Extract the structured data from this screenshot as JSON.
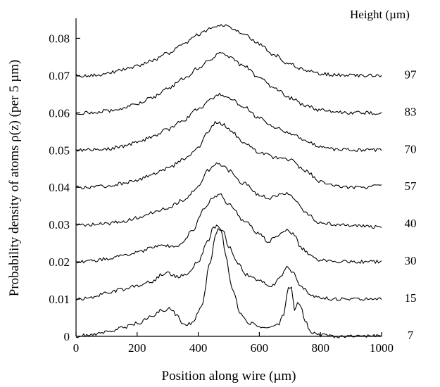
{
  "chart_data": {
    "type": "line",
    "xlabel": "Position along wire (µm)",
    "ylabel": "Probability density of atoms ρ(z) (per 5 µm)",
    "legend_title": "Height  (µm)",
    "xlim": [
      0,
      1000
    ],
    "ylim": [
      0,
      0.085
    ],
    "x_ticks": [
      0,
      200,
      400,
      600,
      800,
      1000
    ],
    "x_tick_labels": [
      "0",
      "200",
      "400",
      "600",
      "800",
      "1000"
    ],
    "y_ticks": [
      0,
      0.01,
      0.02,
      0.03,
      0.04,
      0.05,
      0.06,
      0.07,
      0.08
    ],
    "y_tick_labels": [
      "0",
      "0.01",
      "0.02",
      "0.03",
      "0.04",
      "0.05",
      "0.06",
      "0.07",
      "0.08"
    ],
    "grid": false,
    "series": [
      {
        "name": "97",
        "label_y": 0.07,
        "x": [
          0,
          50,
          100,
          150,
          200,
          250,
          300,
          350,
          400,
          450,
          480,
          500,
          550,
          600,
          650,
          700,
          750,
          800,
          850,
          900,
          950,
          1000
        ],
        "y": [
          0.07,
          0.07,
          0.0705,
          0.0715,
          0.0725,
          0.074,
          0.076,
          0.0785,
          0.081,
          0.083,
          0.0835,
          0.083,
          0.081,
          0.0785,
          0.0755,
          0.073,
          0.0715,
          0.0705,
          0.0702,
          0.07,
          0.07,
          0.07
        ]
      },
      {
        "name": "83",
        "label_y": 0.06,
        "x": [
          0,
          50,
          100,
          150,
          200,
          250,
          300,
          350,
          400,
          440,
          470,
          500,
          550,
          600,
          650,
          700,
          750,
          800,
          850,
          900,
          950,
          1000
        ],
        "y": [
          0.06,
          0.06,
          0.0605,
          0.0612,
          0.0625,
          0.0642,
          0.0665,
          0.069,
          0.072,
          0.0745,
          0.076,
          0.075,
          0.0725,
          0.0695,
          0.0665,
          0.064,
          0.062,
          0.0607,
          0.0602,
          0.06,
          0.06,
          0.0598
        ]
      },
      {
        "name": "70",
        "label_y": 0.05,
        "x": [
          0,
          50,
          100,
          150,
          200,
          250,
          300,
          350,
          400,
          440,
          470,
          500,
          550,
          600,
          650,
          700,
          750,
          800,
          850,
          900,
          950,
          1000
        ],
        "y": [
          0.05,
          0.05,
          0.0503,
          0.051,
          0.052,
          0.0535,
          0.0555,
          0.058,
          0.061,
          0.0635,
          0.065,
          0.064,
          0.0615,
          0.0585,
          0.056,
          0.0545,
          0.0525,
          0.0508,
          0.0502,
          0.05,
          0.05,
          0.05
        ]
      },
      {
        "name": "57",
        "label_y": 0.04,
        "x": [
          0,
          50,
          100,
          150,
          200,
          250,
          300,
          350,
          400,
          430,
          460,
          480,
          500,
          550,
          600,
          650,
          700,
          750,
          800,
          850,
          900,
          950,
          1000
        ],
        "y": [
          0.04,
          0.04,
          0.0403,
          0.041,
          0.042,
          0.0435,
          0.045,
          0.0475,
          0.0505,
          0.055,
          0.0575,
          0.057,
          0.0555,
          0.052,
          0.0495,
          0.048,
          0.0475,
          0.0445,
          0.0415,
          0.0402,
          0.04,
          0.04,
          0.0405
        ]
      },
      {
        "name": "40",
        "label_y": 0.03,
        "x": [
          0,
          50,
          100,
          150,
          200,
          250,
          300,
          350,
          400,
          430,
          460,
          480,
          500,
          550,
          600,
          630,
          660,
          690,
          720,
          750,
          800,
          850,
          900,
          950,
          1000
        ],
        "y": [
          0.03,
          0.03,
          0.0302,
          0.0308,
          0.0318,
          0.0332,
          0.0345,
          0.0365,
          0.04,
          0.0445,
          0.0465,
          0.046,
          0.0445,
          0.041,
          0.038,
          0.037,
          0.038,
          0.0385,
          0.0365,
          0.033,
          0.0305,
          0.03,
          0.0298,
          0.0295,
          0.0293
        ]
      },
      {
        "name": "30",
        "label_y": 0.02,
        "x": [
          0,
          50,
          100,
          150,
          200,
          250,
          280,
          320,
          350,
          380,
          420,
          450,
          470,
          500,
          550,
          600,
          630,
          660,
          690,
          710,
          740,
          770,
          800,
          850,
          900,
          950,
          1000
        ],
        "y": [
          0.02,
          0.0202,
          0.0208,
          0.0215,
          0.0225,
          0.0238,
          0.0245,
          0.024,
          0.025,
          0.0285,
          0.034,
          0.0375,
          0.038,
          0.0355,
          0.031,
          0.0275,
          0.0255,
          0.027,
          0.0285,
          0.0275,
          0.0235,
          0.0215,
          0.0205,
          0.02,
          0.02,
          0.02,
          0.02
        ]
      },
      {
        "name": "15",
        "label_y": 0.01,
        "x": [
          0,
          50,
          100,
          150,
          200,
          250,
          280,
          300,
          330,
          360,
          400,
          430,
          450,
          465,
          480,
          500,
          530,
          560,
          600,
          640,
          670,
          690,
          710,
          740,
          770,
          800,
          850,
          900,
          950,
          1000
        ],
        "y": [
          0.01,
          0.0105,
          0.0115,
          0.0125,
          0.0135,
          0.0148,
          0.0165,
          0.017,
          0.016,
          0.0165,
          0.02,
          0.0255,
          0.029,
          0.0298,
          0.0285,
          0.024,
          0.0195,
          0.0165,
          0.015,
          0.0135,
          0.016,
          0.0188,
          0.017,
          0.013,
          0.011,
          0.0103,
          0.01,
          0.01,
          0.01,
          0.0102
        ]
      },
      {
        "name": "7",
        "label_y": 0.0,
        "x": [
          0,
          50,
          100,
          150,
          200,
          250,
          280,
          310,
          330,
          350,
          380,
          410,
          440,
          455,
          465,
          475,
          490,
          510,
          540,
          570,
          600,
          630,
          660,
          680,
          695,
          705,
          715,
          725,
          735,
          750,
          770,
          800,
          850,
          900,
          950,
          1000
        ],
        "y": [
          0.0,
          0.0005,
          0.0012,
          0.0022,
          0.0035,
          0.0055,
          0.007,
          0.0075,
          0.0055,
          0.003,
          0.0035,
          0.008,
          0.02,
          0.027,
          0.029,
          0.028,
          0.022,
          0.013,
          0.006,
          0.0035,
          0.0025,
          0.0025,
          0.003,
          0.006,
          0.0135,
          0.013,
          0.007,
          0.009,
          0.0085,
          0.004,
          0.0012,
          0.0003,
          0.0,
          0.0,
          0.0,
          0.0003
        ]
      }
    ]
  }
}
